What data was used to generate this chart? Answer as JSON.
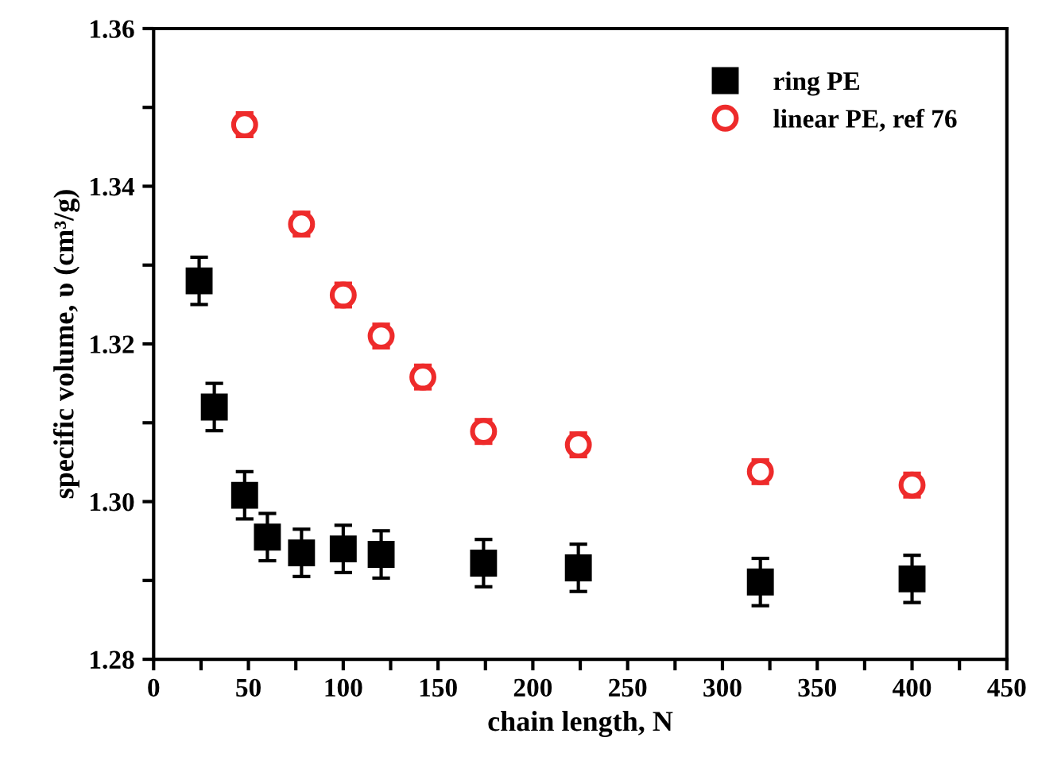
{
  "chart_data": {
    "type": "scatter",
    "xlabel": "chain length, N",
    "ylabel": "specific volume, υ (cm³/g)",
    "xlim": [
      0,
      450
    ],
    "ylim": [
      1.28,
      1.36
    ],
    "xticks": [
      0,
      {
        "value": 25,
        "label": null
      },
      50,
      {
        "value": 75,
        "label": null
      },
      100,
      {
        "value": 125,
        "label": null
      },
      150,
      {
        "value": 175,
        "label": null
      },
      200,
      {
        "value": 225,
        "label": null
      },
      250,
      {
        "value": 275,
        "label": null
      },
      300,
      {
        "value": 325,
        "label": null
      },
      350,
      {
        "value": 375,
        "label": null
      },
      400,
      {
        "value": 425,
        "label": null
      },
      450
    ],
    "yticks": [
      {
        "value": 1.28,
        "label": "1.28"
      },
      {
        "value": 1.29,
        "label": null
      },
      {
        "value": 1.3,
        "label": "1.30"
      },
      {
        "value": 1.31,
        "label": null
      },
      {
        "value": 1.32,
        "label": "1.32"
      },
      {
        "value": 1.33,
        "label": null
      },
      {
        "value": 1.34,
        "label": "1.34"
      },
      {
        "value": 1.35,
        "label": null
      },
      {
        "value": 1.36,
        "label": "1.36"
      }
    ],
    "grid": false,
    "legend": "top right",
    "series": [
      {
        "name": "ring PE",
        "color": "#000000",
        "marker": "square",
        "x": [
          24,
          32,
          48,
          60,
          78,
          100,
          120,
          174,
          224,
          320,
          400
        ],
        "values": [
          1.328,
          1.312,
          1.3008,
          1.2955,
          1.2935,
          1.294,
          1.2933,
          1.2922,
          1.2916,
          1.2898,
          1.2902
        ],
        "errors": [
          0.003,
          0.003,
          0.003,
          0.003,
          0.003,
          0.003,
          0.003,
          0.003,
          0.003,
          0.003,
          0.003
        ]
      },
      {
        "name": "linear PE, ref 76",
        "color": "#ee2b2b",
        "marker": "circle",
        "x": [
          48,
          78,
          100,
          120,
          142,
          174,
          224,
          320,
          400
        ],
        "values": [
          1.3478,
          1.3352,
          1.3262,
          1.321,
          1.3158,
          1.3089,
          1.3072,
          1.3038,
          1.3021
        ],
        "errors": [
          0.0015,
          0.0015,
          0.0015,
          0.0015,
          0.0015,
          0.0015,
          0.0015,
          0.0015,
          0.0015
        ]
      }
    ]
  }
}
